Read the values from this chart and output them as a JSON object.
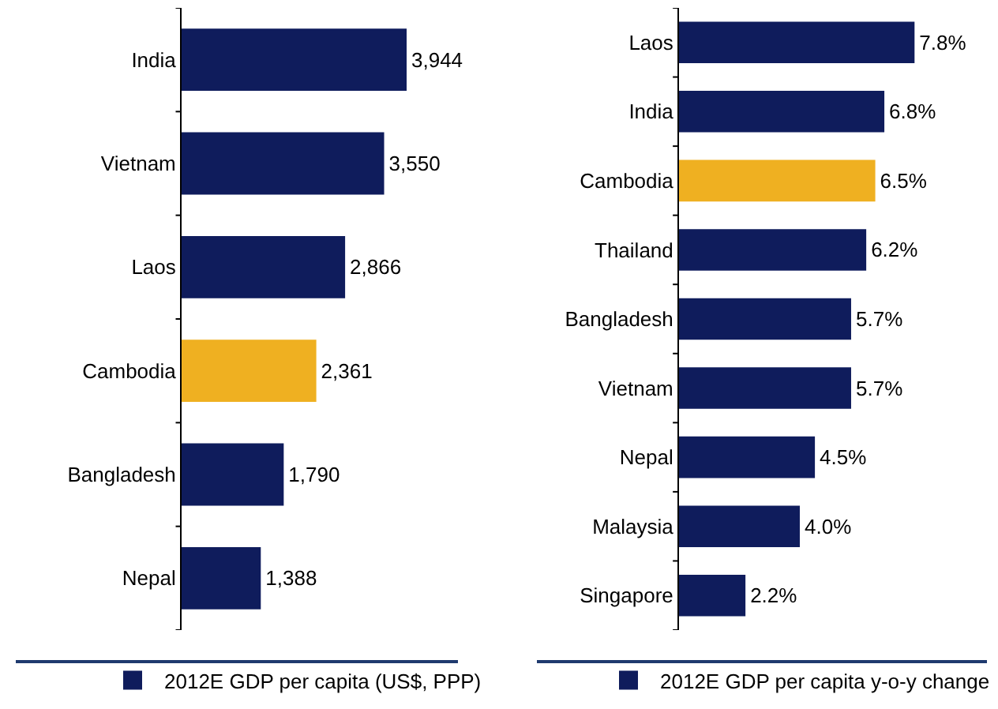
{
  "chart_data": [
    {
      "type": "bar",
      "orientation": "horizontal",
      "categories": [
        "India",
        "Vietnam",
        "Laos",
        "Cambodia",
        "Bangladesh",
        "Nepal"
      ],
      "series": [
        {
          "name": "2012E GDP per capita (US$, PPP)",
          "color": "#0f1c5c",
          "colors": [
            "#0f1c5c",
            "#0f1c5c",
            "#0f1c5c",
            "#efb021",
            "#0f1c5c",
            "#0f1c5c"
          ],
          "values": [
            3944,
            3550,
            2866,
            2361,
            1790,
            1388
          ],
          "value_labels": [
            "3,944",
            "3,550",
            "2,866",
            "2,361",
            "1,790",
            "1,388"
          ]
        }
      ],
      "legend": "bottom",
      "grid": false
    },
    {
      "type": "bar",
      "orientation": "horizontal",
      "categories": [
        "Laos",
        "India",
        "Cambodia",
        "Thailand",
        "Bangladesh",
        "Vietnam",
        "Nepal",
        "Malaysia",
        "Singapore"
      ],
      "series": [
        {
          "name": "2012E GDP per capita y-o-y change",
          "color": "#0f1c5c",
          "colors": [
            "#0f1c5c",
            "#0f1c5c",
            "#efb021",
            "#0f1c5c",
            "#0f1c5c",
            "#0f1c5c",
            "#0f1c5c",
            "#0f1c5c",
            "#0f1c5c"
          ],
          "values": [
            7.8,
            6.8,
            6.5,
            6.2,
            5.7,
            5.7,
            4.5,
            4.0,
            2.2
          ],
          "value_labels": [
            "7.8%",
            "6.8%",
            "6.5%",
            "6.2%",
            "5.7%",
            "5.7%",
            "4.5%",
            "4.0%",
            "2.2%"
          ]
        }
      ],
      "legend": "bottom",
      "grid": false
    }
  ]
}
